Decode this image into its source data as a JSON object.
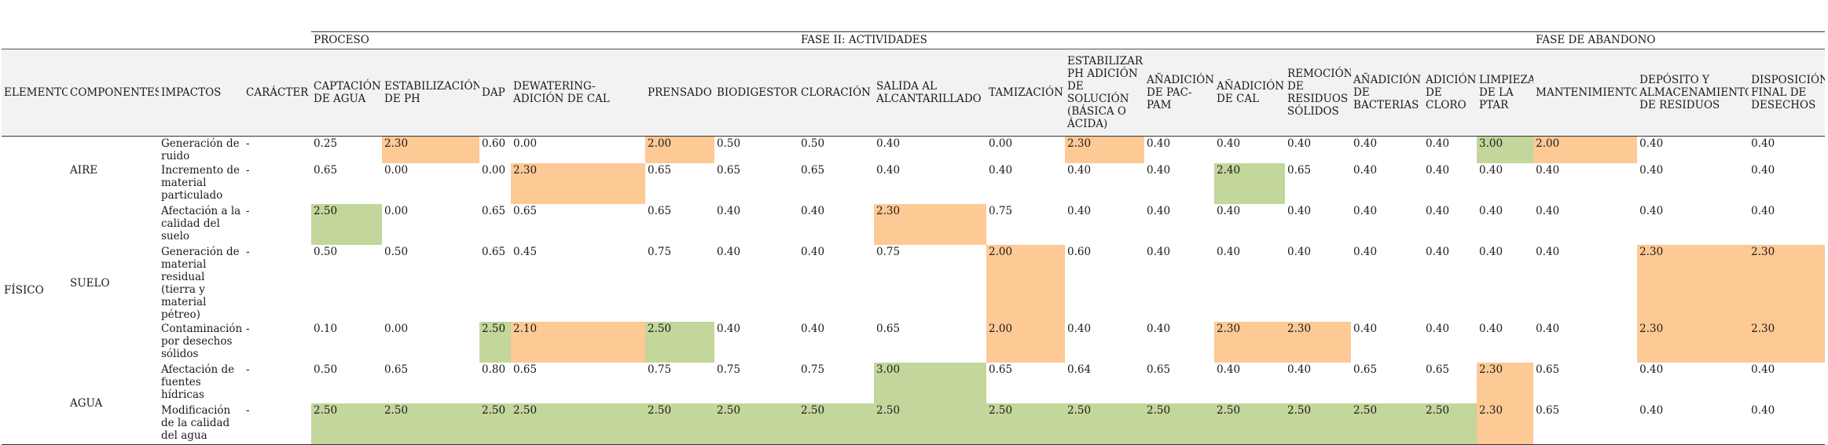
{
  "phase_headers": {
    "proceso": "PROCESO",
    "fase2": "FASE II: ACTIVIDADES",
    "abandono": "FASE DE ABANDONO"
  },
  "columns": [
    "ELEMENTO",
    "COMPONENTES",
    "IMPACTOS",
    "CARÁCTER",
    "CAPTACIÓN DE AGUA",
    "ESTABILIZACIÓN DE PH",
    "DAP",
    "DEWATERING-ADICIÓN DE CAL",
    "PRENSADO",
    "BIODIGESTOR",
    "CLORACIÓN",
    "SALIDA AL ALCANTARILLADO",
    "TAMIZACIÓN",
    "ESTABILIZAR PH ADICIÓN DE SOLUCIÓN (BÁSICA O ÁCIDA)",
    "AÑADICIÓN DE PAC-PAM",
    "AÑADICIÓN DE CAL",
    "REMOCIÓN DE RESIDUOS SÓLIDOS",
    "AÑADICIÓN DE BACTERIAS",
    "ADICIÓN DE CLORO",
    "LIMPIEZA DE LA PTAR",
    "MANTENIMIENTO",
    "DEPÓSITO Y ALMACENAMIENTO DE RESIDUOS",
    "DISPOSICIÓN FINAL DE DESECHOS"
  ],
  "element": "FÍSICO",
  "components": [
    "AIRE",
    "SUELO",
    "AGUA"
  ],
  "rows": [
    {
      "impact": "Generación de ruido",
      "caracter": "-",
      "values": [
        "0.25",
        "2.30",
        "0.60",
        "0.00",
        "2.00",
        "0.50",
        "0.50",
        "0.40",
        "0.00",
        "2.30",
        "0.40",
        "0.40",
        "0.40",
        "0.40",
        "0.40",
        "3.00",
        "2.00",
        "0.40",
        "0.40"
      ]
    },
    {
      "impact": "Incremento de material particulado",
      "caracter": "-",
      "values": [
        "0.65",
        "0.00",
        "0.00",
        "2.30",
        "0.65",
        "0.65",
        "0.65",
        "0.40",
        "0.40",
        "0.40",
        "0.40",
        "2.40",
        "0.65",
        "0.40",
        "0.40",
        "0.40",
        "0.40",
        "0.40",
        "0.40"
      ]
    },
    {
      "impact": "Afectación a la calidad del suelo",
      "caracter": "-",
      "values": [
        "2.50",
        "0.00",
        "0.65",
        "0.65",
        "0.65",
        "0.40",
        "0.40",
        "2.30",
        "0.75",
        "0.40",
        "0.40",
        "0.40",
        "0.40",
        "0.40",
        "0.40",
        "0.40",
        "0.40",
        "0.40",
        "0.40"
      ]
    },
    {
      "impact": "Generación de material residual (tierra y material pétreo)",
      "caracter": "-",
      "values": [
        "0.50",
        "0.50",
        "0.65",
        "0.45",
        "0.75",
        "0.40",
        "0.40",
        "0.75",
        "2.00",
        "0.60",
        "0.40",
        "0.40",
        "0.40",
        "0.40",
        "0.40",
        "0.40",
        "0.40",
        "2.30",
        "2.30"
      ]
    },
    {
      "impact": "Contaminación por desechos sólidos",
      "caracter": "-",
      "values": [
        "0.10",
        "0.00",
        "2.50",
        "2.10",
        "2.50",
        "0.40",
        "0.40",
        "0.65",
        "2.00",
        "0.40",
        "0.40",
        "2.30",
        "2.30",
        "0.40",
        "0.40",
        "0.40",
        "0.40",
        "2.30",
        "2.30"
      ]
    },
    {
      "impact": "Afectación de fuentes hídricas",
      "caracter": "-",
      "values": [
        "0.50",
        "0.65",
        "0.80",
        "0.65",
        "0.75",
        "0.75",
        "0.75",
        "3.00",
        "0.65",
        "0.64",
        "0.65",
        "0.40",
        "0.40",
        "0.65",
        "0.65",
        "2.30",
        "0.65",
        "0.40",
        "0.40"
      ]
    },
    {
      "impact": "Modificación de la calidad del agua",
      "caracter": "-",
      "values": [
        "2.50",
        "2.50",
        "2.50",
        "2.50",
        "2.50",
        "2.50",
        "2.50",
        "2.50",
        "2.50",
        "2.50",
        "2.50",
        "2.50",
        "2.50",
        "2.50",
        "2.50",
        "2.30",
        "0.65",
        "0.40",
        "0.40"
      ]
    }
  ],
  "highlight_colors": {
    "orange": "#fdc995",
    "green": "#c3d69b"
  }
}
